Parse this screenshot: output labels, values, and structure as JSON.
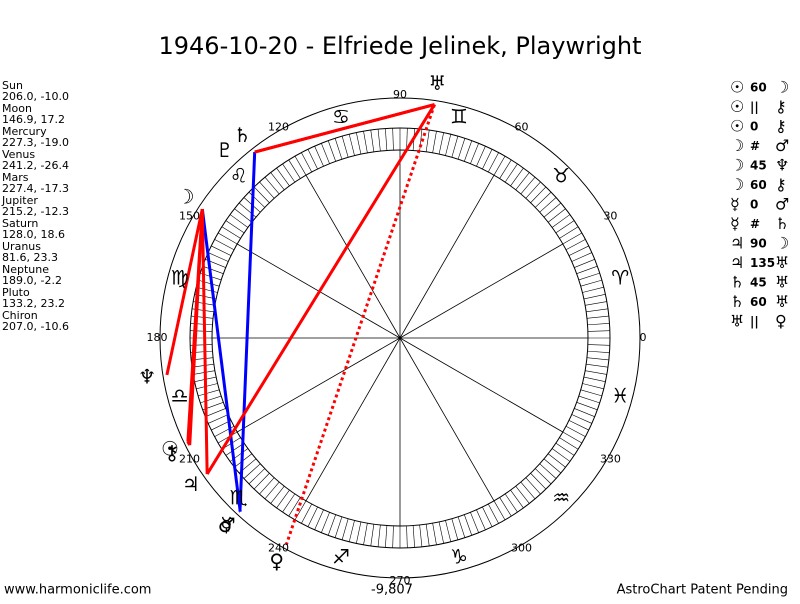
{
  "header": {
    "title": "1946-10-20 - Elfriede Jelinek, Playwright"
  },
  "planets": [
    {
      "name": "Sun",
      "glyph": "☉",
      "position": "206.0, -10.0"
    },
    {
      "name": "Moon",
      "glyph": "☽",
      "position": "146.9, 17.2"
    },
    {
      "name": "Mercury",
      "glyph": "☿",
      "position": "227.3, -19.0"
    },
    {
      "name": "Venus",
      "glyph": "♀",
      "position": "241.2, -26.4"
    },
    {
      "name": "Mars",
      "glyph": "♂",
      "position": "227.4, -17.3"
    },
    {
      "name": "Jupiter",
      "glyph": "♃",
      "position": "215.2, -12.3"
    },
    {
      "name": "Saturn",
      "glyph": "♄",
      "position": "128.0, 18.6"
    },
    {
      "name": "Uranus",
      "glyph": "♅",
      "position": "81.6, 23.3"
    },
    {
      "name": "Neptune",
      "glyph": "♆",
      "position": "189.0, -2.2"
    },
    {
      "name": "Pluto",
      "glyph": "♇",
      "position": "133.2, 23.2"
    },
    {
      "name": "Chiron",
      "glyph": "⚷",
      "position": "207.0, -10.6"
    }
  ],
  "aspects": [
    {
      "from": "☉",
      "aspect": "60",
      "to": "☽"
    },
    {
      "from": "☉",
      "aspect": "||",
      "to": "⚷"
    },
    {
      "from": "☉",
      "aspect": "0",
      "to": "⚷"
    },
    {
      "from": "☽",
      "aspect": "#",
      "to": "♂"
    },
    {
      "from": "☽",
      "aspect": "45",
      "to": "♆"
    },
    {
      "from": "☽",
      "aspect": "60",
      "to": "⚷"
    },
    {
      "from": "☿",
      "aspect": "0",
      "to": "♂"
    },
    {
      "from": "☿",
      "aspect": "#",
      "to": "♄"
    },
    {
      "from": "♃",
      "aspect": "90",
      "to": "☽"
    },
    {
      "from": "♃",
      "aspect": "135",
      "to": "♅"
    },
    {
      "from": "♄",
      "aspect": "45",
      "to": "♅"
    },
    {
      "from": "♄",
      "aspect": "60",
      "to": "♅"
    },
    {
      "from": "♅",
      "aspect": "||",
      "to": "♀"
    }
  ],
  "zodiac": [
    "♈",
    "♉",
    "♊",
    "♋",
    "♌",
    "♍",
    "♎",
    "♏",
    "♐",
    "♑",
    "♒",
    "♓"
  ],
  "degree_labels": [
    "0",
    "30",
    "60",
    "90",
    "120",
    "150",
    "180",
    "210",
    "240",
    "270",
    "300",
    "330"
  ],
  "wheel": {
    "center_label": "-9,807"
  },
  "footer": {
    "left": "www.harmoniclife.com",
    "right": "AstroChart Patent Pending"
  }
}
